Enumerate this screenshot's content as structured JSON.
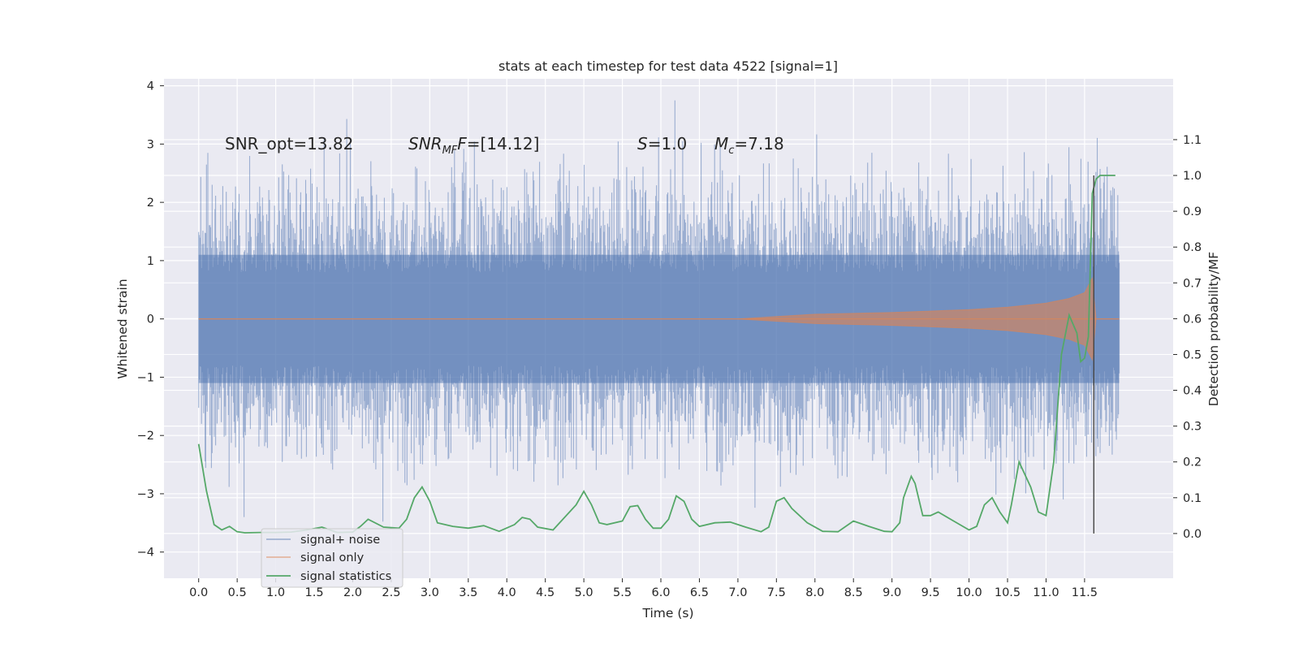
{
  "chart_data": {
    "type": "line",
    "title": "stats at each timestep for test data 4522 [signal=1]",
    "xlabel": "Time (s)",
    "ylabel_left": "Whitened strain",
    "ylabel_right": "Detection probability/MF",
    "xlim": [
      -0.45,
      12.65
    ],
    "ylim_left": [
      -4.45,
      4.12
    ],
    "ylim_right": [
      -0.125,
      1.27
    ],
    "x_ticks": [
      0.0,
      0.5,
      1.0,
      1.5,
      2.0,
      2.5,
      3.0,
      3.5,
      4.0,
      4.5,
      5.0,
      5.5,
      6.0,
      6.5,
      7.0,
      7.5,
      8.0,
      8.5,
      9.0,
      9.5,
      10.0,
      10.5,
      11.0,
      11.5
    ],
    "x_tick_labels": [
      "0.0",
      "0.5",
      "1.0",
      "1.5",
      "2.0",
      "2.5",
      "3.0",
      "3.5",
      "4.0",
      "4.5",
      "5.0",
      "5.5",
      "6.0",
      "6.5",
      "7.0",
      "7.5",
      "8.0",
      "8.5",
      "9.0",
      "9.5",
      "10.0",
      "10.5",
      "11.0",
      "11.5"
    ],
    "y_left_ticks": [
      -4,
      -3,
      -2,
      -1,
      0,
      1,
      2,
      3,
      4
    ],
    "y_left_tick_labels": [
      "−4",
      "−3",
      "−2",
      "−1",
      "0",
      "1",
      "2",
      "3",
      "4"
    ],
    "y_right_ticks": [
      0.0,
      0.1,
      0.2,
      0.3,
      0.4,
      0.5,
      0.6,
      0.7,
      0.8,
      0.9,
      1.0,
      1.1
    ],
    "y_right_tick_labels": [
      "0.0",
      "0.1",
      "0.2",
      "0.3",
      "0.4",
      "0.5",
      "0.6",
      "0.7",
      "0.8",
      "0.9",
      "1.0",
      "1.1"
    ],
    "grid": true,
    "legend_position": "lower-left",
    "annotations": {
      "snr_opt": "SNR_opt=13.82",
      "snr_mf_main": "SNR",
      "snr_mf_sub": "MF",
      "snr_mf_rest": "=[14.12]",
      "s_var": "S",
      "s_rest": "=1.0",
      "mc_var": "M",
      "mc_sub": "c",
      "mc_rest": "=7.18"
    },
    "marker_line": {
      "x": 11.62,
      "y_right_range": [
        0.0,
        1.0
      ]
    },
    "series": [
      {
        "name": "signal+ noise",
        "color": "#4c72b0",
        "opacity": 0.5,
        "description_points": "noise band, approx amplitude",
        "x_range": [
          0.0,
          11.95
        ],
        "noise_sigma": 1.0,
        "noise_peak_max": 3.75,
        "noise_peak_min": -4.1
      },
      {
        "name": "signal only",
        "color": "#dd8452",
        "opacity": 0.6,
        "x": [
          0.0,
          7.0,
          7.5,
          8.0,
          9.0,
          10.0,
          10.5,
          11.0,
          11.3,
          11.5,
          11.6,
          11.65,
          11.95
        ],
        "envelope": [
          0.0,
          0.0,
          0.04,
          0.08,
          0.11,
          0.16,
          0.2,
          0.27,
          0.35,
          0.45,
          0.7,
          0.0,
          0.0
        ]
      },
      {
        "name": "signal statistics",
        "color": "#55a868",
        "x": [
          0.0,
          0.1,
          0.2,
          0.3,
          0.4,
          0.5,
          0.6,
          0.8,
          1.0,
          1.2,
          1.4,
          1.6,
          1.8,
          2.0,
          2.1,
          2.2,
          2.4,
          2.6,
          2.7,
          2.8,
          2.9,
          3.0,
          3.1,
          3.3,
          3.5,
          3.7,
          3.9,
          4.1,
          4.2,
          4.3,
          4.4,
          4.6,
          4.9,
          5.0,
          5.1,
          5.2,
          5.3,
          5.5,
          5.6,
          5.7,
          5.8,
          5.9,
          6.0,
          6.1,
          6.2,
          6.3,
          6.4,
          6.5,
          6.7,
          6.9,
          7.1,
          7.3,
          7.4,
          7.5,
          7.6,
          7.7,
          7.9,
          8.1,
          8.3,
          8.5,
          8.7,
          8.9,
          9.0,
          9.1,
          9.15,
          9.25,
          9.3,
          9.4,
          9.5,
          9.6,
          9.8,
          10.0,
          10.1,
          10.2,
          10.3,
          10.4,
          10.5,
          10.55,
          10.65,
          10.8,
          10.9,
          11.0,
          11.1,
          11.2,
          11.3,
          11.4,
          11.45,
          11.5,
          11.55,
          11.6,
          11.65,
          11.7,
          11.8,
          11.9
        ],
        "values": [
          0.25,
          0.12,
          0.025,
          0.01,
          0.02,
          0.005,
          0.002,
          0.003,
          0.003,
          0.004,
          0.01,
          0.018,
          0.003,
          0.004,
          0.02,
          0.04,
          0.018,
          0.015,
          0.04,
          0.1,
          0.13,
          0.09,
          0.03,
          0.02,
          0.015,
          0.022,
          0.006,
          0.025,
          0.045,
          0.04,
          0.018,
          0.01,
          0.08,
          0.118,
          0.08,
          0.03,
          0.025,
          0.035,
          0.075,
          0.078,
          0.04,
          0.015,
          0.015,
          0.04,
          0.105,
          0.09,
          0.04,
          0.02,
          0.03,
          0.032,
          0.018,
          0.005,
          0.018,
          0.09,
          0.1,
          0.07,
          0.03,
          0.006,
          0.005,
          0.035,
          0.02,
          0.006,
          0.005,
          0.03,
          0.1,
          0.16,
          0.14,
          0.05,
          0.05,
          0.06,
          0.035,
          0.01,
          0.02,
          0.08,
          0.1,
          0.06,
          0.03,
          0.08,
          0.2,
          0.13,
          0.06,
          0.05,
          0.2,
          0.5,
          0.61,
          0.56,
          0.48,
          0.49,
          0.55,
          0.95,
          0.99,
          1.0,
          1.0,
          1.0
        ]
      }
    ]
  }
}
